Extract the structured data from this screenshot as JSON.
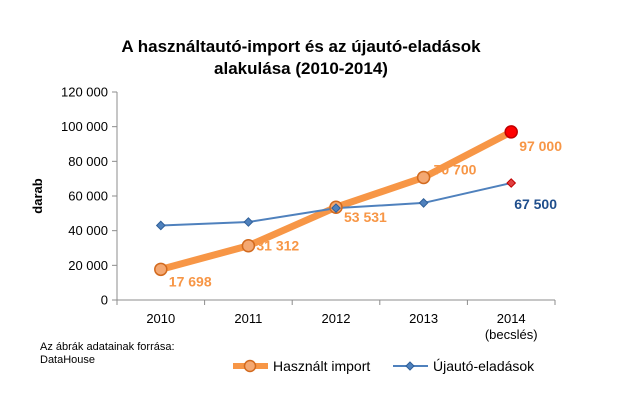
{
  "chart_data": {
    "type": "line",
    "title_lines": [
      "A használtautó-import és az újautó-eladások",
      "alakulása (2010-2014)"
    ],
    "ylabel": "darab",
    "categories": [
      {
        "lines": [
          "2010"
        ]
      },
      {
        "lines": [
          "2011"
        ]
      },
      {
        "lines": [
          "2012"
        ]
      },
      {
        "lines": [
          "2013"
        ]
      },
      {
        "lines": [
          "2014",
          "(becslés)"
        ]
      }
    ],
    "ylim": [
      0,
      120000
    ],
    "yticks": [
      0,
      20000,
      40000,
      60000,
      80000,
      100000,
      120000
    ],
    "ytick_labels": [
      "0",
      "20 000",
      "40 000",
      "60 000",
      "80 000",
      "100 000",
      "120 000"
    ],
    "grid": false,
    "legend_position": "bottom",
    "series": [
      {
        "name": "Használt import",
        "color": "#F79646",
        "marker": "circle",
        "values": [
          17698,
          31312,
          53531,
          70700,
          97000
        ],
        "labels": [
          "17 698",
          "31 312",
          "53 531",
          "70 700",
          "97 000"
        ],
        "highlight_last_color": "#FF0000"
      },
      {
        "name": "Újautó-eladások",
        "color": "#4F81BD",
        "marker": "diamond",
        "values": [
          43000,
          45000,
          53000,
          56000,
          67500
        ],
        "labels": [
          "",
          "",
          "",
          "",
          "67 500"
        ],
        "highlight_last_color": "#E04040"
      }
    ],
    "source_lines": [
      "Az ábrák adatainak forrása:",
      "DataHouse"
    ]
  }
}
